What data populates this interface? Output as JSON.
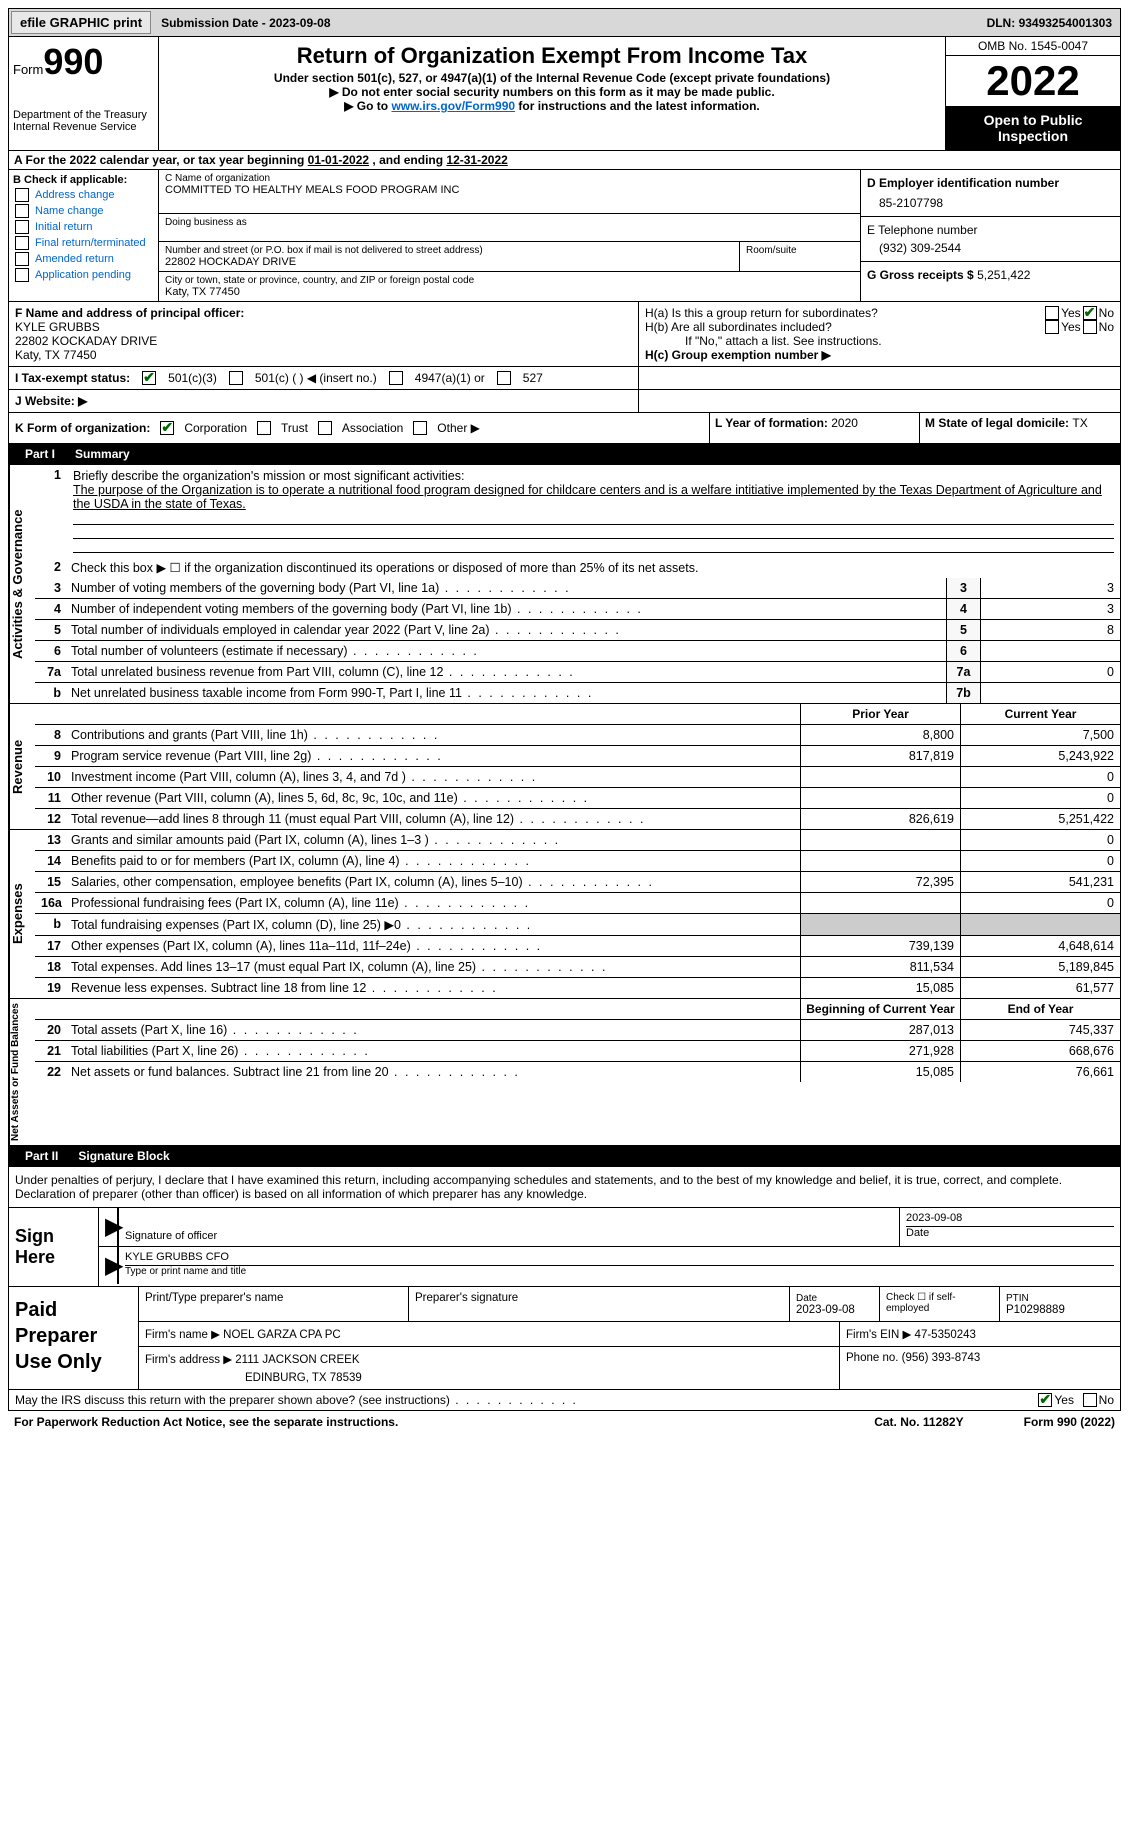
{
  "topbar": {
    "efile": "efile GRAPHIC print",
    "submission_label": "Submission Date - ",
    "submission_date": "2023-09-08",
    "dln_label": "DLN: ",
    "dln": "93493254001303"
  },
  "header": {
    "form_word": "Form",
    "form_number": "990",
    "dept": "Department of the Treasury",
    "irs": "Internal Revenue Service",
    "title": "Return of Organization Exempt From Income Tax",
    "sub1": "Under section 501(c), 527, or 4947(a)(1) of the Internal Revenue Code (except private foundations)",
    "sub2": "▶ Do not enter social security numbers on this form as it may be made public.",
    "sub3_pre": "▶ Go to ",
    "sub3_link": "www.irs.gov/Form990",
    "sub3_post": " for instructions and the latest information.",
    "omb": "OMB No. 1545-0047",
    "year": "2022",
    "inspect": "Open to Public Inspection"
  },
  "period": {
    "line_pre": "A For the 2022 calendar year, or tax year beginning ",
    "begin": "01-01-2022",
    "mid": " , and ending ",
    "end": "12-31-2022"
  },
  "B": {
    "label": "B Check if applicable:",
    "address_change": "Address change",
    "name_change": "Name change",
    "initial_return": "Initial return",
    "final": "Final return/terminated",
    "amended": "Amended return",
    "app": "Application pending"
  },
  "C": {
    "name_label": "C Name of organization",
    "name": "COMMITTED TO HEALTHY MEALS FOOD PROGRAM INC",
    "dba_label": "Doing business as",
    "street_label": "Number and street (or P.O. box if mail is not delivered to street address)",
    "room_label": "Room/suite",
    "street": "22802 HOCKADAY DRIVE",
    "city_label": "City or town, state or province, country, and ZIP or foreign postal code",
    "city": "Katy, TX  77450"
  },
  "D": {
    "label": "D Employer identification number",
    "value": "85-2107798"
  },
  "E": {
    "label": "E Telephone number",
    "value": "(932) 309-2544"
  },
  "G": {
    "label": "G Gross receipts $ ",
    "value": "5,251,422"
  },
  "F": {
    "label": "F  Name and address of principal officer:",
    "name": "KYLE GRUBBS",
    "street": "22802 KOCKADAY DRIVE",
    "city": "Katy, TX  77450"
  },
  "H": {
    "a_label": "H(a)  Is this a group return for subordinates?",
    "b_label": "H(b)  Are all subordinates included?",
    "b_note": "If \"No,\" attach a list. See instructions.",
    "c_label": "H(c)  Group exemption number ▶",
    "yes": "Yes",
    "no": "No"
  },
  "I": {
    "label": "I    Tax-exempt status:",
    "c3": "501(c)(3)",
    "c_other": "501(c) (  ) ◀ (insert no.)",
    "a4947": "4947(a)(1) or",
    "s527": "527"
  },
  "J": {
    "label": "J   Website: ▶"
  },
  "K": {
    "label": "K Form of organization:",
    "corp": "Corporation",
    "trust": "Trust",
    "assoc": "Association",
    "other": "Other ▶"
  },
  "L": {
    "label": "L Year of formation: ",
    "value": "2020"
  },
  "M": {
    "label": "M State of legal domicile: ",
    "value": "TX"
  },
  "parts": {
    "p1": "Part I",
    "p1_title": "Summary",
    "p2": "Part II",
    "p2_title": "Signature Block"
  },
  "side_labels": {
    "ag": "Activities & Governance",
    "rev": "Revenue",
    "exp": "Expenses",
    "na": "Net Assets or Fund Balances"
  },
  "summary": {
    "l1": "Briefly describe the organization's mission or most significant activities:",
    "mission": "The purpose of the Organization is to operate a nutritional food program designed for childcare centers and is a welfare intitiative implemented by the Texas Department of Agriculture and the USDA in the state of Texas.",
    "l2": "Check this box ▶ ☐  if the organization discontinued its operations or disposed of more than 25% of its net assets.",
    "l3": "Number of voting members of the governing body (Part VI, line 1a)",
    "l4": "Number of independent voting members of the governing body (Part VI, line 1b)",
    "l5": "Total number of individuals employed in calendar year 2022 (Part V, line 2a)",
    "l6": "Total number of volunteers (estimate if necessary)",
    "l7a": "Total unrelated business revenue from Part VIII, column (C), line 12",
    "l7b": "Net unrelated business taxable income from Form 990-T, Part I, line 11",
    "v3": "3",
    "v4": "3",
    "v5": "8",
    "v6": "",
    "v7a": "0",
    "v7b": "",
    "col_prior": "Prior Year",
    "col_curr": "Current Year",
    "col_begin": "Beginning of Current Year",
    "col_end": "End of Year",
    "rows_rev": [
      {
        "n": "8",
        "d": "Contributions and grants (Part VIII, line 1h)",
        "p": "8,800",
        "c": "7,500"
      },
      {
        "n": "9",
        "d": "Program service revenue (Part VIII, line 2g)",
        "p": "817,819",
        "c": "5,243,922"
      },
      {
        "n": "10",
        "d": "Investment income (Part VIII, column (A), lines 3, 4, and 7d )",
        "p": "",
        "c": "0"
      },
      {
        "n": "11",
        "d": "Other revenue (Part VIII, column (A), lines 5, 6d, 8c, 9c, 10c, and 11e)",
        "p": "",
        "c": "0"
      },
      {
        "n": "12",
        "d": "Total revenue—add lines 8 through 11 (must equal Part VIII, column (A), line 12)",
        "p": "826,619",
        "c": "5,251,422"
      }
    ],
    "rows_exp": [
      {
        "n": "13",
        "d": "Grants and similar amounts paid (Part IX, column (A), lines 1–3 )",
        "p": "",
        "c": "0"
      },
      {
        "n": "14",
        "d": "Benefits paid to or for members (Part IX, column (A), line 4)",
        "p": "",
        "c": "0"
      },
      {
        "n": "15",
        "d": "Salaries, other compensation, employee benefits (Part IX, column (A), lines 5–10)",
        "p": "72,395",
        "c": "541,231"
      },
      {
        "n": "16a",
        "d": "Professional fundraising fees (Part IX, column (A), line 11e)",
        "p": "",
        "c": "0"
      },
      {
        "n": "b",
        "d": "Total fundraising expenses (Part IX, column (D), line 25) ▶0",
        "p": "",
        "c": "",
        "shaded": true
      },
      {
        "n": "17",
        "d": "Other expenses (Part IX, column (A), lines 11a–11d, 11f–24e)",
        "p": "739,139",
        "c": "4,648,614"
      },
      {
        "n": "18",
        "d": "Total expenses. Add lines 13–17 (must equal Part IX, column (A), line 25)",
        "p": "811,534",
        "c": "5,189,845"
      },
      {
        "n": "19",
        "d": "Revenue less expenses. Subtract line 18 from line 12",
        "p": "15,085",
        "c": "61,577"
      }
    ],
    "rows_na": [
      {
        "n": "20",
        "d": "Total assets (Part X, line 16)",
        "p": "287,013",
        "c": "745,337"
      },
      {
        "n": "21",
        "d": "Total liabilities (Part X, line 26)",
        "p": "271,928",
        "c": "668,676"
      },
      {
        "n": "22",
        "d": "Net assets or fund balances. Subtract line 21 from line 20",
        "p": "15,085",
        "c": "76,661"
      }
    ]
  },
  "sig": {
    "declaration": "Under penalties of perjury, I declare that I have examined this return, including accompanying schedules and statements, and to the best of my knowledge and belief, it is true, correct, and complete. Declaration of preparer (other than officer) is based on all information of which preparer has any knowledge.",
    "sign_here": "Sign Here",
    "sig_officer": "Signature of officer",
    "date": "Date",
    "sig_date": "2023-09-08",
    "name_title": "KYLE GRUBBS CFO",
    "type_label": "Type or print name and title"
  },
  "prep": {
    "title": "Paid Preparer Use Only",
    "print_label": "Print/Type preparer's name",
    "sig_label": "Preparer's signature",
    "date_label": "Date",
    "date": "2023-09-08",
    "check_label": "Check ☐ if self-employed",
    "ptin_label": "PTIN",
    "ptin": "P10298889",
    "firm_name_label": "Firm's name   ▶ ",
    "firm_name": "NOEL GARZA CPA PC",
    "firm_ein_label": "Firm's EIN ▶ ",
    "firm_ein": "47-5350243",
    "firm_addr_label": "Firm's address ▶ ",
    "firm_addr1": "2111 JACKSON CREEK",
    "firm_addr2": "EDINBURG, TX  78539",
    "phone_label": "Phone no. ",
    "phone": "(956) 393-8743"
  },
  "footer": {
    "discuss": "May the IRS discuss this return with the preparer shown above? (see instructions)",
    "yes": "Yes",
    "no": "No",
    "pra": "For Paperwork Reduction Act Notice, see the separate instructions.",
    "cat": "Cat. No. 11282Y",
    "form": "Form 990 (2022)"
  },
  "colors": {
    "link": "#0066cc",
    "check": "#006600",
    "shade": "#cccccc",
    "topbar": "#d8d8d8"
  }
}
